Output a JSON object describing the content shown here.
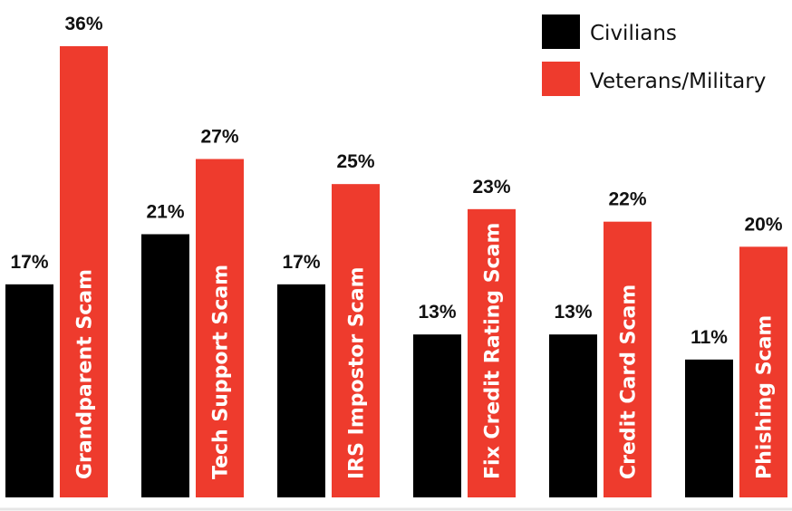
{
  "chart_data": {
    "type": "bar",
    "categories": [
      "Grandparent Scam",
      "Tech Support Scam",
      "IRS Impostor Scam",
      "Fix Credit Rating Scam",
      "Credit Card Scam",
      "Phishing Scam"
    ],
    "series": [
      {
        "name": "Civilians",
        "color": "#000000",
        "values": [
          17,
          21,
          17,
          13,
          13,
          11
        ],
        "labels": [
          "17%",
          "21%",
          "17%",
          "13%",
          "13%",
          "11%"
        ]
      },
      {
        "name": "Veterans/Military",
        "color": "#ee3b2d",
        "values": [
          36,
          27,
          25,
          23,
          22,
          20
        ],
        "labels": [
          "36%",
          "27%",
          "25%",
          "23%",
          "22%",
          "20%"
        ]
      }
    ],
    "ylim": [
      0,
      36
    ],
    "grid": false,
    "legend": "top-right",
    "value_labels": "above bars",
    "category_labels": "rotated inside veterans bars"
  }
}
